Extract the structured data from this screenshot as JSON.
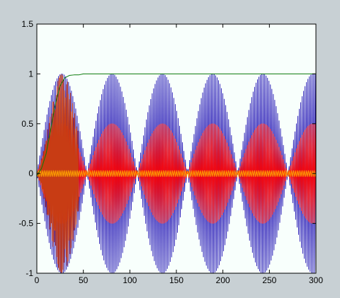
{
  "chart_data": {
    "type": "line",
    "title": "",
    "xlabel": "",
    "ylabel": "",
    "xlim": [
      0,
      300
    ],
    "ylim": [
      -1,
      1.5
    ],
    "grid": false,
    "x_ticks": [
      0,
      50,
      100,
      150,
      200,
      250,
      300
    ],
    "y_ticks": [
      -1,
      -0.5,
      0,
      0.5,
      1,
      1.5
    ],
    "x_tick_labels": [
      "0",
      "50",
      "100",
      "150",
      "200",
      "250",
      "300"
    ],
    "y_tick_labels": [
      "-1",
      "-0.5",
      "0",
      "0.5",
      "1",
      "1.5"
    ],
    "colors": {
      "figure_bg": "#c8d0d4",
      "plot_bg": "#f8fffc",
      "axes": "#000000",
      "blue": "#1f10b4",
      "red": "#ff0000",
      "dark_red": "#c83c14",
      "orange": "#ffa800",
      "green": "#0a7a0a"
    },
    "series": [
      {
        "color_key": "blue",
        "kind": "oscillation",
        "envelope_period": 54.0,
        "envelope_peak_x": 81.0,
        "amplitude": 1.0,
        "carrier_period": 1.55,
        "x_range": [
          0,
          300
        ]
      },
      {
        "color_key": "red",
        "kind": "oscillation",
        "envelope_period": 54.0,
        "envelope_peak_x": 81.0,
        "amplitude": 0.5,
        "carrier_period": 1.55,
        "x_range": [
          0,
          300
        ]
      },
      {
        "color_key": "dark_red",
        "kind": "chirp",
        "start_x": 0,
        "end_x": 45,
        "amplitude": 1.0
      },
      {
        "color_key": "orange",
        "kind": "oscillation",
        "envelope_period": 0,
        "envelope_peak_x": 0,
        "amplitude": 0.03,
        "carrier_period": 2.0,
        "x_range": [
          0,
          300
        ]
      },
      {
        "color_key": "green",
        "kind": "step",
        "points": [
          [
            0,
            -0.02
          ],
          [
            5,
            0.05
          ],
          [
            10,
            0.2
          ],
          [
            15,
            0.45
          ],
          [
            20,
            0.7
          ],
          [
            25,
            0.88
          ],
          [
            30,
            0.96
          ],
          [
            35,
            0.985
          ],
          [
            40,
            0.99
          ],
          [
            45,
            0.99
          ],
          [
            50,
            1.0
          ],
          [
            80,
            1.0
          ],
          [
            300,
            1.0
          ]
        ]
      }
    ]
  }
}
